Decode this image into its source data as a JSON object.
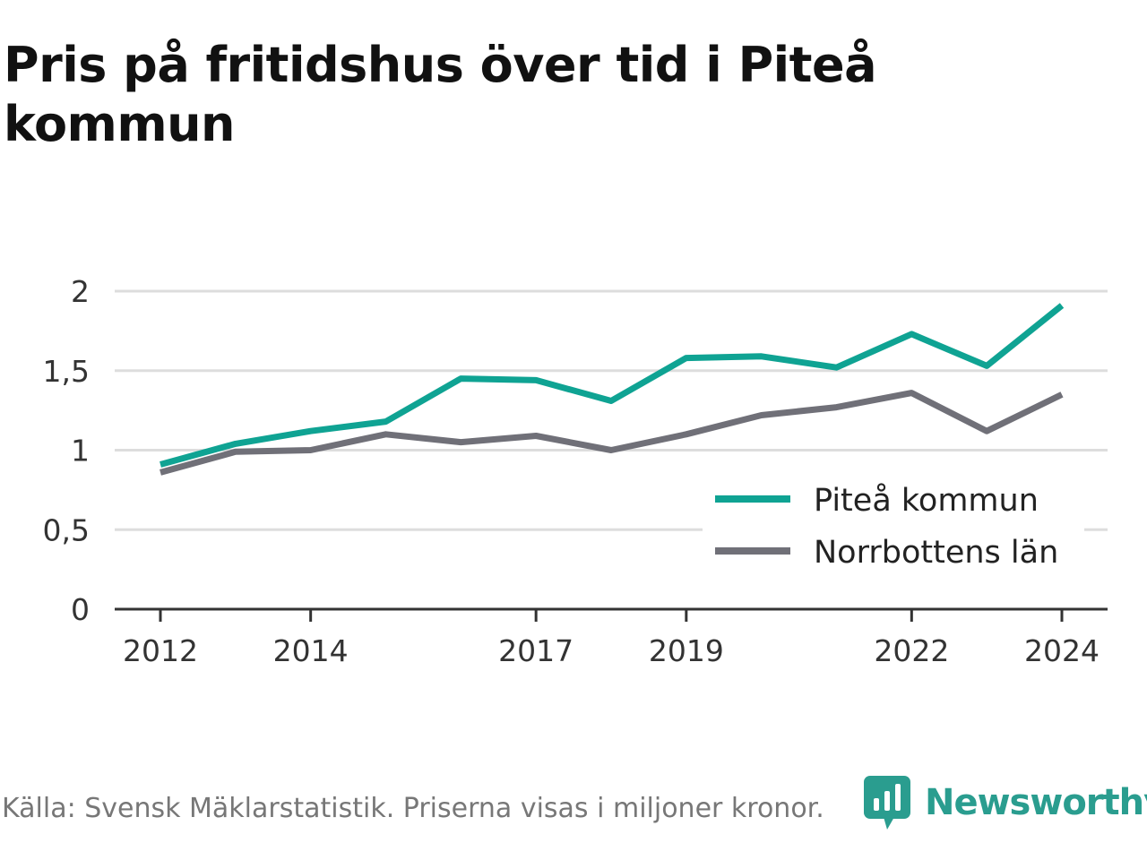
{
  "title": "Pris på fritidshus över tid i Piteå kommun",
  "source_note": "Källa: Svensk Mäklarstatistik. Priserna visas i miljoner kronor.",
  "brand": {
    "name": "Newsworthy",
    "icon": "newsworthy-logo-icon",
    "color": "#2a9d8f"
  },
  "chart_data": {
    "type": "line",
    "x": [
      2012,
      2013,
      2014,
      2015,
      2016,
      2017,
      2018,
      2019,
      2020,
      2021,
      2022,
      2023,
      2024
    ],
    "x_ticks": [
      "2012",
      "2014",
      "2017",
      "2019",
      "2022",
      "2024"
    ],
    "y_ticks": [
      "0",
      "0,5",
      "1",
      "1,5",
      "2"
    ],
    "ylim": [
      0,
      2
    ],
    "grid": true,
    "legend_position": "bottom-right",
    "series": [
      {
        "name": "Piteå kommun",
        "color": "#0fa393",
        "values": [
          0.91,
          1.04,
          1.12,
          1.18,
          1.45,
          1.44,
          1.31,
          1.58,
          1.59,
          1.52,
          1.73,
          1.53,
          1.91
        ]
      },
      {
        "name": "Norrbottens län",
        "color": "#707078",
        "values": [
          0.86,
          0.99,
          1.0,
          1.1,
          1.05,
          1.09,
          1.0,
          1.1,
          1.22,
          1.27,
          1.36,
          1.12,
          1.35
        ]
      }
    ]
  }
}
